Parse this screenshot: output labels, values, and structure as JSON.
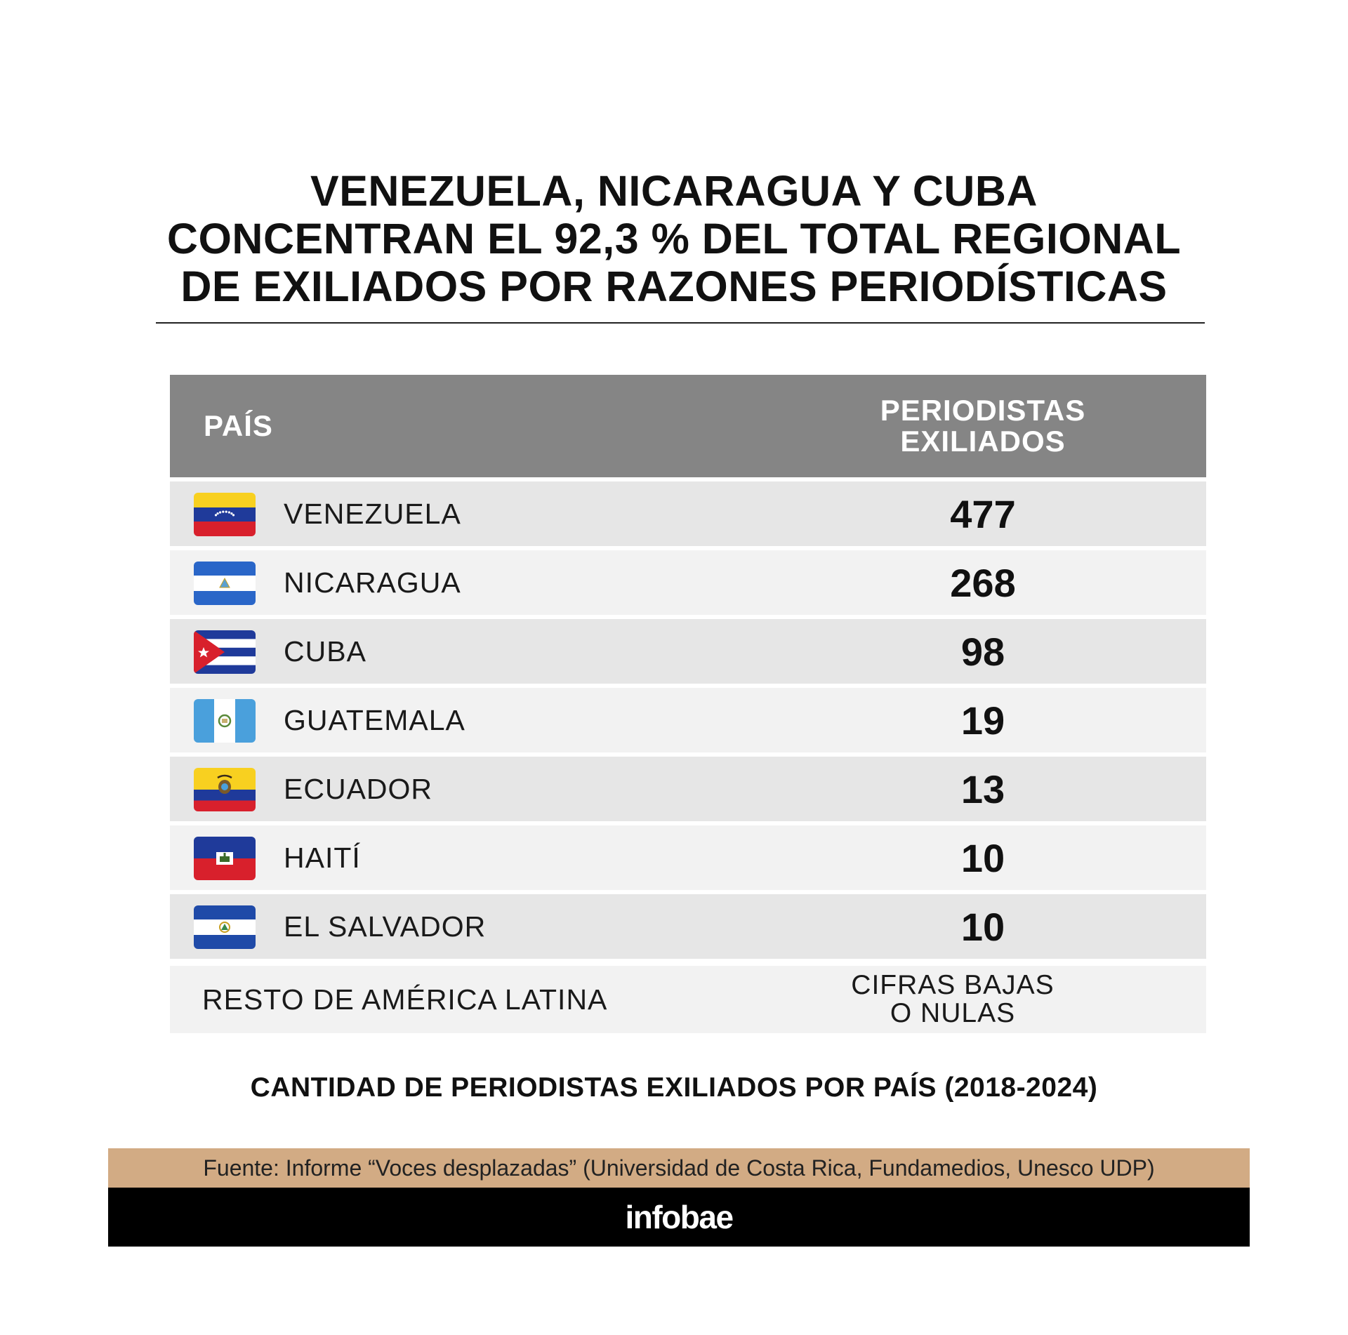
{
  "title_lines": [
    "VENEZUELA, NICARAGUA Y CUBA",
    "CONCENTRAN EL 92,3 % DEL TOTAL REGIONAL",
    "DE EXILIADOS POR RAZONES PERIODÍSTICAS"
  ],
  "table": {
    "header": {
      "country": "PAÍS",
      "value_line1": "PERIODISTAS",
      "value_line2": "EXILIADOS"
    },
    "rest": {
      "label": "RESTO DE AMÉRICA LATINA",
      "value_line1": "CIFRAS BAJAS",
      "value_line2": "O NULAS"
    }
  },
  "chart_data": {
    "type": "table",
    "columns": [
      "PAÍS",
      "PERIODISTAS EXILIADOS"
    ],
    "categories": [
      "VENEZUELA",
      "NICARAGUA",
      "CUBA",
      "GUATEMALA",
      "ECUADOR",
      "HAITÍ",
      "EL SALVADOR"
    ],
    "values": [
      477,
      268,
      98,
      19,
      13,
      10,
      10
    ],
    "flags": [
      "venezuela-flag-icon",
      "nicaragua-flag-icon",
      "cuba-flag-icon",
      "guatemala-flag-icon",
      "ecuador-flag-icon",
      "haiti-flag-icon",
      "el-salvador-flag-icon"
    ]
  },
  "caption": "CANTIDAD DE PERIODISTAS EXILIADOS POR PAÍS (2018-2024)",
  "source": "Fuente: Informe “Voces desplazadas” (Universidad de Costa Rica, Fundamedios, Unesco UDP)",
  "brand": "infobae",
  "colors": {
    "header_bg": "#858585",
    "row_odd": "#e6e6e6",
    "row_even": "#f2f2f2",
    "source_bar": "#d2ab84",
    "brand_bar": "#000000"
  }
}
